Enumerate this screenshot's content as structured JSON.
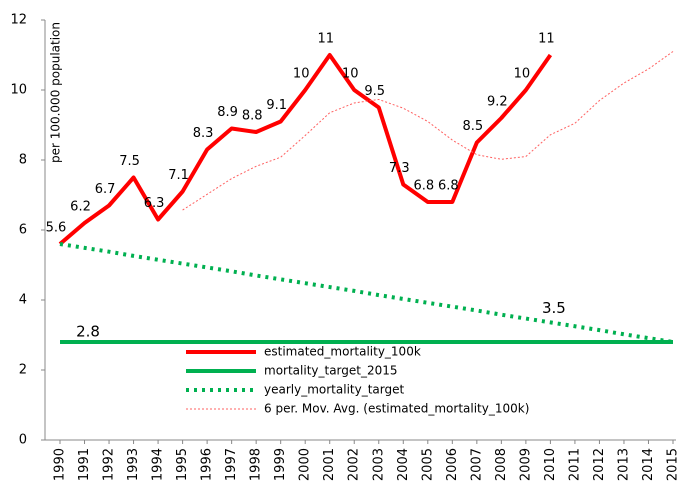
{
  "chart_data": {
    "type": "line",
    "ylabel": "per 100.000 population",
    "categories": [
      "1990",
      "1991",
      "1992",
      "1993",
      "1994",
      "1995",
      "1996",
      "1997",
      "1998",
      "1999",
      "2000",
      "2001",
      "2002",
      "2003",
      "2004",
      "2005",
      "2006",
      "2007",
      "2008",
      "2009",
      "2010",
      "2011",
      "2012",
      "2013",
      "2014",
      "2015"
    ],
    "series": [
      {
        "name": "estimated_mortality_100k",
        "color": "#ff0000",
        "style": "solid",
        "width": 4,
        "values": [
          5.6,
          6.2,
          6.7,
          7.5,
          6.3,
          7.1,
          8.3,
          8.9,
          8.8,
          9.1,
          10,
          11,
          10,
          9.5,
          7.3,
          6.8,
          6.8,
          8.5,
          9.2,
          10,
          11,
          null,
          null,
          null,
          null,
          null
        ],
        "value_labels": [
          "5.6",
          "6.2",
          "6.7",
          "7.5",
          "6.3",
          "7.1",
          "8.3",
          "8.9",
          "8.8",
          "9.1",
          "10",
          "11",
          "10",
          "9.5",
          "7.3",
          "6.8",
          "6.8",
          "8.5",
          "9.2",
          "10",
          "11",
          null,
          null,
          null,
          null,
          null
        ]
      },
      {
        "name": "mortality_target_2015",
        "color": "#00b050",
        "style": "solid",
        "width": 4,
        "values": [
          2.8,
          2.8,
          2.8,
          2.8,
          2.8,
          2.8,
          2.8,
          2.8,
          2.8,
          2.8,
          2.8,
          2.8,
          2.8,
          2.8,
          2.8,
          2.8,
          2.8,
          2.8,
          2.8,
          2.8,
          2.8,
          2.8,
          2.8,
          2.8,
          2.8,
          2.8
        ],
        "value_labels": [
          "2.8",
          null,
          null,
          null,
          null,
          null,
          null,
          null,
          null,
          null,
          null,
          null,
          null,
          null,
          null,
          null,
          null,
          null,
          null,
          null,
          null,
          null,
          null,
          null,
          null,
          null
        ]
      },
      {
        "name": "yearly_mortality_target",
        "color": "#00b050",
        "style": "dotted",
        "width": 4,
        "values": [
          5.6,
          5.49,
          5.38,
          5.26,
          5.15,
          5.04,
          4.93,
          4.82,
          4.7,
          4.59,
          4.48,
          4.37,
          4.26,
          4.14,
          4.03,
          3.92,
          3.81,
          3.7,
          3.58,
          3.47,
          3.36,
          3.25,
          3.14,
          3.02,
          2.91,
          2.8
        ],
        "value_labels": [
          null,
          null,
          null,
          null,
          null,
          null,
          null,
          null,
          null,
          null,
          null,
          null,
          null,
          null,
          null,
          null,
          null,
          null,
          null,
          "3.5",
          null,
          null,
          null,
          null,
          null,
          null
        ]
      },
      {
        "name": "6 per. Mov. Avg. (estimated_mortality_100k)",
        "color": "#ff6060",
        "style": "thin-dotted",
        "width": 1,
        "values": [
          null,
          null,
          null,
          null,
          null,
          6.57,
          7.02,
          7.47,
          7.82,
          8.08,
          8.7,
          9.35,
          9.63,
          9.73,
          9.48,
          9.1,
          8.57,
          8.15,
          8.02,
          8.1,
          8.72,
          9.05,
          9.7,
          10.2,
          10.6,
          11.1
        ]
      }
    ],
    "ylim": [
      0,
      12
    ],
    "yticks": [
      0,
      2,
      4,
      6,
      8,
      10,
      12
    ],
    "grid": false
  }
}
